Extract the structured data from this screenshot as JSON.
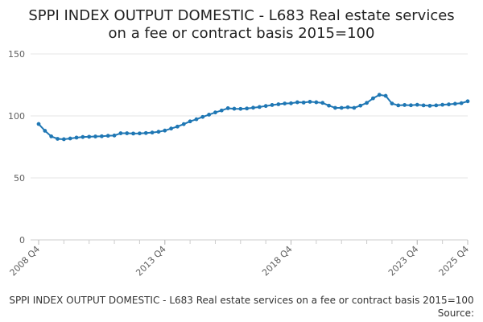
{
  "chart_data": {
    "type": "line",
    "title_lines": [
      "SPPI INDEX OUTPUT DOMESTIC - L683 Real estate services",
      "on a fee or contract basis 2015=100"
    ],
    "xlabel": "",
    "ylabel": "",
    "ylim": [
      0,
      150
    ],
    "y_ticks": [
      "0",
      "50",
      "100",
      "150"
    ],
    "y_tick_values": [
      0,
      50,
      100,
      150
    ],
    "x_tick_labels": [
      "2008 Q4",
      "2013 Q4",
      "2018 Q4",
      "2023 Q4",
      "2025 Q4"
    ],
    "x_tick_indices": [
      0,
      20,
      40,
      60,
      68
    ],
    "grid": true,
    "line_color": "#1f77b4",
    "series": [
      {
        "values": [
          93.5,
          88.0,
          83.5,
          81.5,
          81.2,
          81.8,
          82.5,
          83.0,
          83.2,
          83.4,
          83.6,
          84.0,
          84.2,
          86.0,
          86.0,
          85.8,
          85.9,
          86.2,
          86.6,
          87.2,
          88.2,
          89.8,
          91.4,
          93.4,
          95.6,
          97.3,
          99.2,
          101.0,
          102.8,
          104.4,
          106.2,
          105.8,
          105.7,
          106.0,
          106.6,
          107.2,
          108.0,
          108.8,
          109.4,
          110.0,
          110.2,
          111.0,
          110.8,
          111.4,
          111.0,
          110.5,
          108.3,
          106.5,
          106.5,
          107.0,
          106.5,
          108.3,
          110.5,
          114.2,
          117.0,
          116.2,
          110.0,
          108.5,
          108.8,
          108.6,
          109.0,
          108.5,
          108.2,
          108.5,
          109.0,
          109.3,
          109.8,
          110.3,
          111.8
        ]
      }
    ]
  },
  "footer": {
    "caption": "SPPI INDEX OUTPUT DOMESTIC - L683 Real estate services on a fee or contract basis 2015=100",
    "source_label": "Source:"
  }
}
